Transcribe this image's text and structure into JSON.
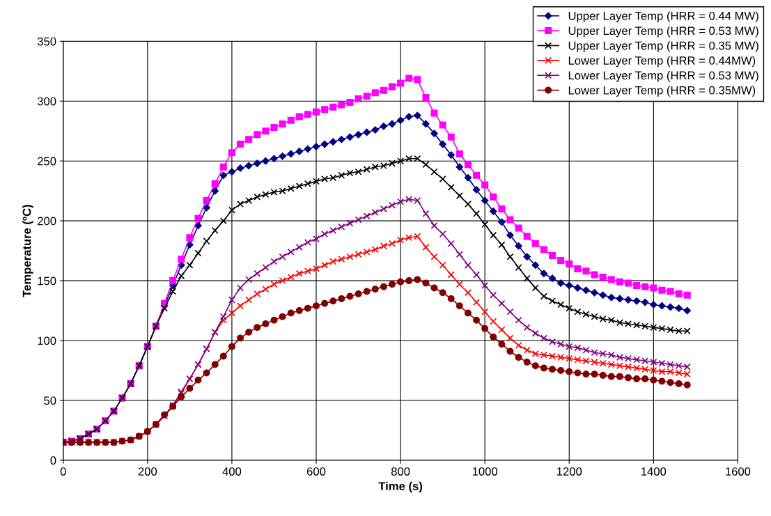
{
  "chart_data": {
    "type": "line",
    "xlabel": "Time (s)",
    "ylabel": "Temperature (ºC)",
    "x": [
      0,
      20,
      40,
      60,
      80,
      100,
      120,
      140,
      160,
      180,
      200,
      220,
      240,
      260,
      280,
      300,
      320,
      340,
      360,
      380,
      400,
      420,
      440,
      460,
      480,
      500,
      520,
      540,
      560,
      580,
      600,
      620,
      640,
      660,
      680,
      700,
      720,
      740,
      760,
      780,
      800,
      820,
      840,
      860,
      880,
      900,
      920,
      940,
      960,
      980,
      1000,
      1020,
      1040,
      1060,
      1080,
      1100,
      1120,
      1140,
      1160,
      1180,
      1200,
      1220,
      1240,
      1260,
      1280,
      1300,
      1320,
      1340,
      1360,
      1380,
      1400,
      1420,
      1440,
      1460,
      1480
    ],
    "xlim": [
      0,
      1600
    ],
    "xticks": [
      0,
      200,
      400,
      600,
      800,
      1000,
      1200,
      1400,
      1600
    ],
    "ylim": [
      0,
      350
    ],
    "yticks": [
      0,
      50,
      100,
      150,
      200,
      250,
      300,
      350
    ],
    "grid": true,
    "legend": "top right",
    "line_style": "solid",
    "series": [
      {
        "name": "Upper Layer Temp (HRR = 0.44 MW)",
        "color": "#000080",
        "marker": "diamond",
        "values": [
          null,
          null,
          null,
          null,
          null,
          null,
          null,
          52,
          64,
          79,
          95,
          112,
          129,
          146,
          163,
          180,
          196,
          211,
          225,
          238,
          241,
          244,
          246,
          248,
          250,
          252,
          254,
          256,
          258,
          260,
          262,
          264,
          266,
          268,
          270,
          272,
          274,
          276,
          279,
          281,
          284,
          287,
          288,
          281,
          273,
          264,
          255,
          245,
          236,
          226,
          217,
          208,
          199,
          188,
          179,
          170,
          163,
          156,
          152,
          148,
          146,
          144,
          142,
          140,
          138,
          136,
          135,
          134,
          133,
          132,
          130,
          129,
          128,
          127,
          125
        ]
      },
      {
        "name": "Upper Layer Temp (HRR = 0.53 MW)",
        "color": "#ff00ff",
        "marker": "square",
        "values": [
          15,
          16,
          18,
          22,
          26,
          33,
          41,
          52,
          64,
          79,
          95,
          112,
          131,
          150,
          168,
          186,
          202,
          217,
          231,
          245,
          257,
          264,
          268,
          272,
          275,
          278,
          281,
          284,
          287,
          289,
          291,
          293,
          295,
          297,
          299,
          302,
          304,
          307,
          309,
          312,
          315,
          319,
          318,
          303,
          290,
          280,
          270,
          256,
          247,
          238,
          230,
          220,
          210,
          201,
          194,
          187,
          181,
          176,
          171,
          167,
          164,
          160,
          158,
          155,
          153,
          151,
          149,
          148,
          146,
          145,
          144,
          142,
          141,
          139,
          138
        ]
      },
      {
        "name": "Upper Layer Temp (HRR = 0.35 MW)",
        "color": "#000000",
        "marker": "cross",
        "values": [
          15,
          16,
          18,
          22,
          26,
          33,
          41,
          52,
          64,
          79,
          95,
          112,
          127,
          141,
          154,
          163,
          173,
          183,
          192,
          200,
          209,
          214,
          217,
          220,
          222,
          224,
          225,
          227,
          229,
          231,
          233,
          235,
          236,
          238,
          240,
          241,
          243,
          245,
          246,
          248,
          250,
          252,
          252,
          247,
          241,
          235,
          228,
          221,
          214,
          206,
          197,
          188,
          180,
          170,
          161,
          152,
          144,
          137,
          133,
          130,
          127,
          124,
          122,
          120,
          118,
          117,
          115,
          114,
          113,
          112,
          111,
          110,
          109,
          108,
          108
        ]
      },
      {
        "name": "Lower Layer Temp (HRR = 0.44MW)",
        "color": "#ff0000",
        "marker": "cross",
        "values": [
          null,
          null,
          null,
          null,
          null,
          null,
          null,
          null,
          null,
          null,
          null,
          30,
          37,
          45,
          56,
          68,
          80,
          93,
          107,
          117,
          123,
          129,
          134,
          139,
          143,
          147,
          150,
          153,
          156,
          158,
          160,
          163,
          166,
          168,
          170,
          172,
          174,
          176,
          179,
          181,
          184,
          186,
          187,
          178,
          170,
          163,
          155,
          147,
          140,
          132,
          124,
          116,
          109,
          102,
          96,
          92,
          89,
          88,
          87,
          86,
          85,
          84,
          83,
          82,
          81,
          80,
          79,
          78,
          77,
          76,
          75,
          74,
          74,
          73,
          72
        ]
      },
      {
        "name": "Lower Layer Temp (HRR = 0.53 MW)",
        "color": "#800080",
        "marker": "cross",
        "values": [
          15,
          15,
          15,
          15,
          15,
          15,
          15,
          16,
          17,
          20,
          24,
          30,
          37,
          46,
          57,
          68,
          80,
          93,
          107,
          120,
          134,
          144,
          151,
          156,
          161,
          166,
          170,
          174,
          178,
          182,
          185,
          189,
          192,
          195,
          198,
          201,
          204,
          207,
          210,
          213,
          216,
          218,
          217,
          206,
          196,
          189,
          181,
          172,
          163,
          155,
          146,
          138,
          131,
          124,
          117,
          111,
          106,
          102,
          99,
          97,
          95,
          94,
          92,
          90,
          89,
          88,
          86,
          85,
          84,
          83,
          82,
          81,
          80,
          79,
          78
        ]
      },
      {
        "name": "Lower Layer Temp (HRR = 0.35MW)",
        "color": "#800000",
        "marker": "circle",
        "values": [
          15,
          15,
          15,
          15,
          15,
          15,
          15,
          16,
          17,
          20,
          24,
          30,
          38,
          45,
          53,
          60,
          67,
          73,
          80,
          87,
          95,
          102,
          107,
          111,
          114,
          117,
          120,
          123,
          125,
          127,
          129,
          131,
          133,
          135,
          137,
          139,
          141,
          143,
          145,
          147,
          149,
          150,
          151,
          148,
          144,
          140,
          135,
          129,
          123,
          117,
          110,
          103,
          97,
          91,
          86,
          82,
          79,
          77,
          76,
          75,
          74,
          73,
          72,
          72,
          71,
          70,
          70,
          69,
          68,
          68,
          67,
          66,
          65,
          64,
          63
        ]
      }
    ]
  }
}
